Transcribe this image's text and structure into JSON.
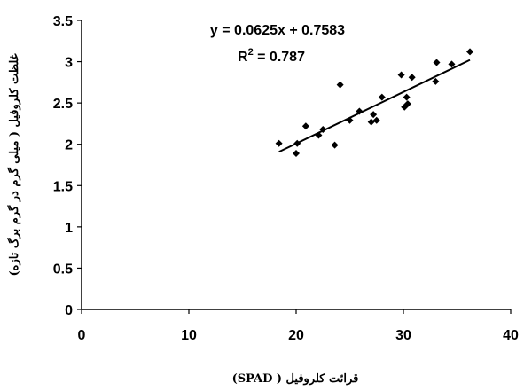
{
  "chart_data": {
    "type": "scatter",
    "title": "",
    "xlabel": "قرائت کلروفیل ( SPAD)",
    "ylabel": "غلظت کلروفیل ( میلی گرم در گرم برگ تازه)",
    "xlim": [
      0,
      40
    ],
    "ylim": [
      0,
      3.5
    ],
    "x_ticks": [
      0,
      10,
      20,
      30,
      40
    ],
    "x_tick_labels": [
      "0",
      "10",
      "20",
      "30",
      "40"
    ],
    "y_ticks": [
      0,
      0.5,
      1,
      1.5,
      2,
      2.5,
      3,
      3.5
    ],
    "y_tick_labels": [
      "0",
      "0.5",
      "1",
      "1.5",
      "2",
      "2.5",
      "3",
      "3.5"
    ],
    "grid": false,
    "legend": "none",
    "point_marker": "diamond",
    "color": "#000000",
    "series": [
      {
        "points": [
          {
            "x": 18.4,
            "y": 2.01
          },
          {
            "x": 20.0,
            "y": 1.89
          },
          {
            "x": 20.1,
            "y": 2.01
          },
          {
            "x": 20.9,
            "y": 2.22
          },
          {
            "x": 22.1,
            "y": 2.11
          },
          {
            "x": 22.5,
            "y": 2.18
          },
          {
            "x": 23.6,
            "y": 1.99
          },
          {
            "x": 24.1,
            "y": 2.72
          },
          {
            "x": 25.0,
            "y": 2.29
          },
          {
            "x": 25.9,
            "y": 2.4
          },
          {
            "x": 27.0,
            "y": 2.27
          },
          {
            "x": 27.2,
            "y": 2.36
          },
          {
            "x": 27.5,
            "y": 2.29
          },
          {
            "x": 28.0,
            "y": 2.57
          },
          {
            "x": 29.8,
            "y": 2.84
          },
          {
            "x": 30.1,
            "y": 2.45
          },
          {
            "x": 30.3,
            "y": 2.57
          },
          {
            "x": 30.4,
            "y": 2.49
          },
          {
            "x": 30.8,
            "y": 2.81
          },
          {
            "x": 33.0,
            "y": 2.76
          },
          {
            "x": 33.1,
            "y": 2.99
          },
          {
            "x": 34.5,
            "y": 2.97
          },
          {
            "x": 36.2,
            "y": 3.12
          }
        ]
      }
    ],
    "trendline": {
      "slope": 0.0625,
      "intercept": 0.7583,
      "x_range": [
        18.4,
        36.2
      ]
    },
    "annotations": {
      "equation": "y = 0.0625x + 0.7583",
      "r2_prefix": "R",
      "r2_exp": "2",
      "r2_suffix": " = 0.787"
    }
  }
}
